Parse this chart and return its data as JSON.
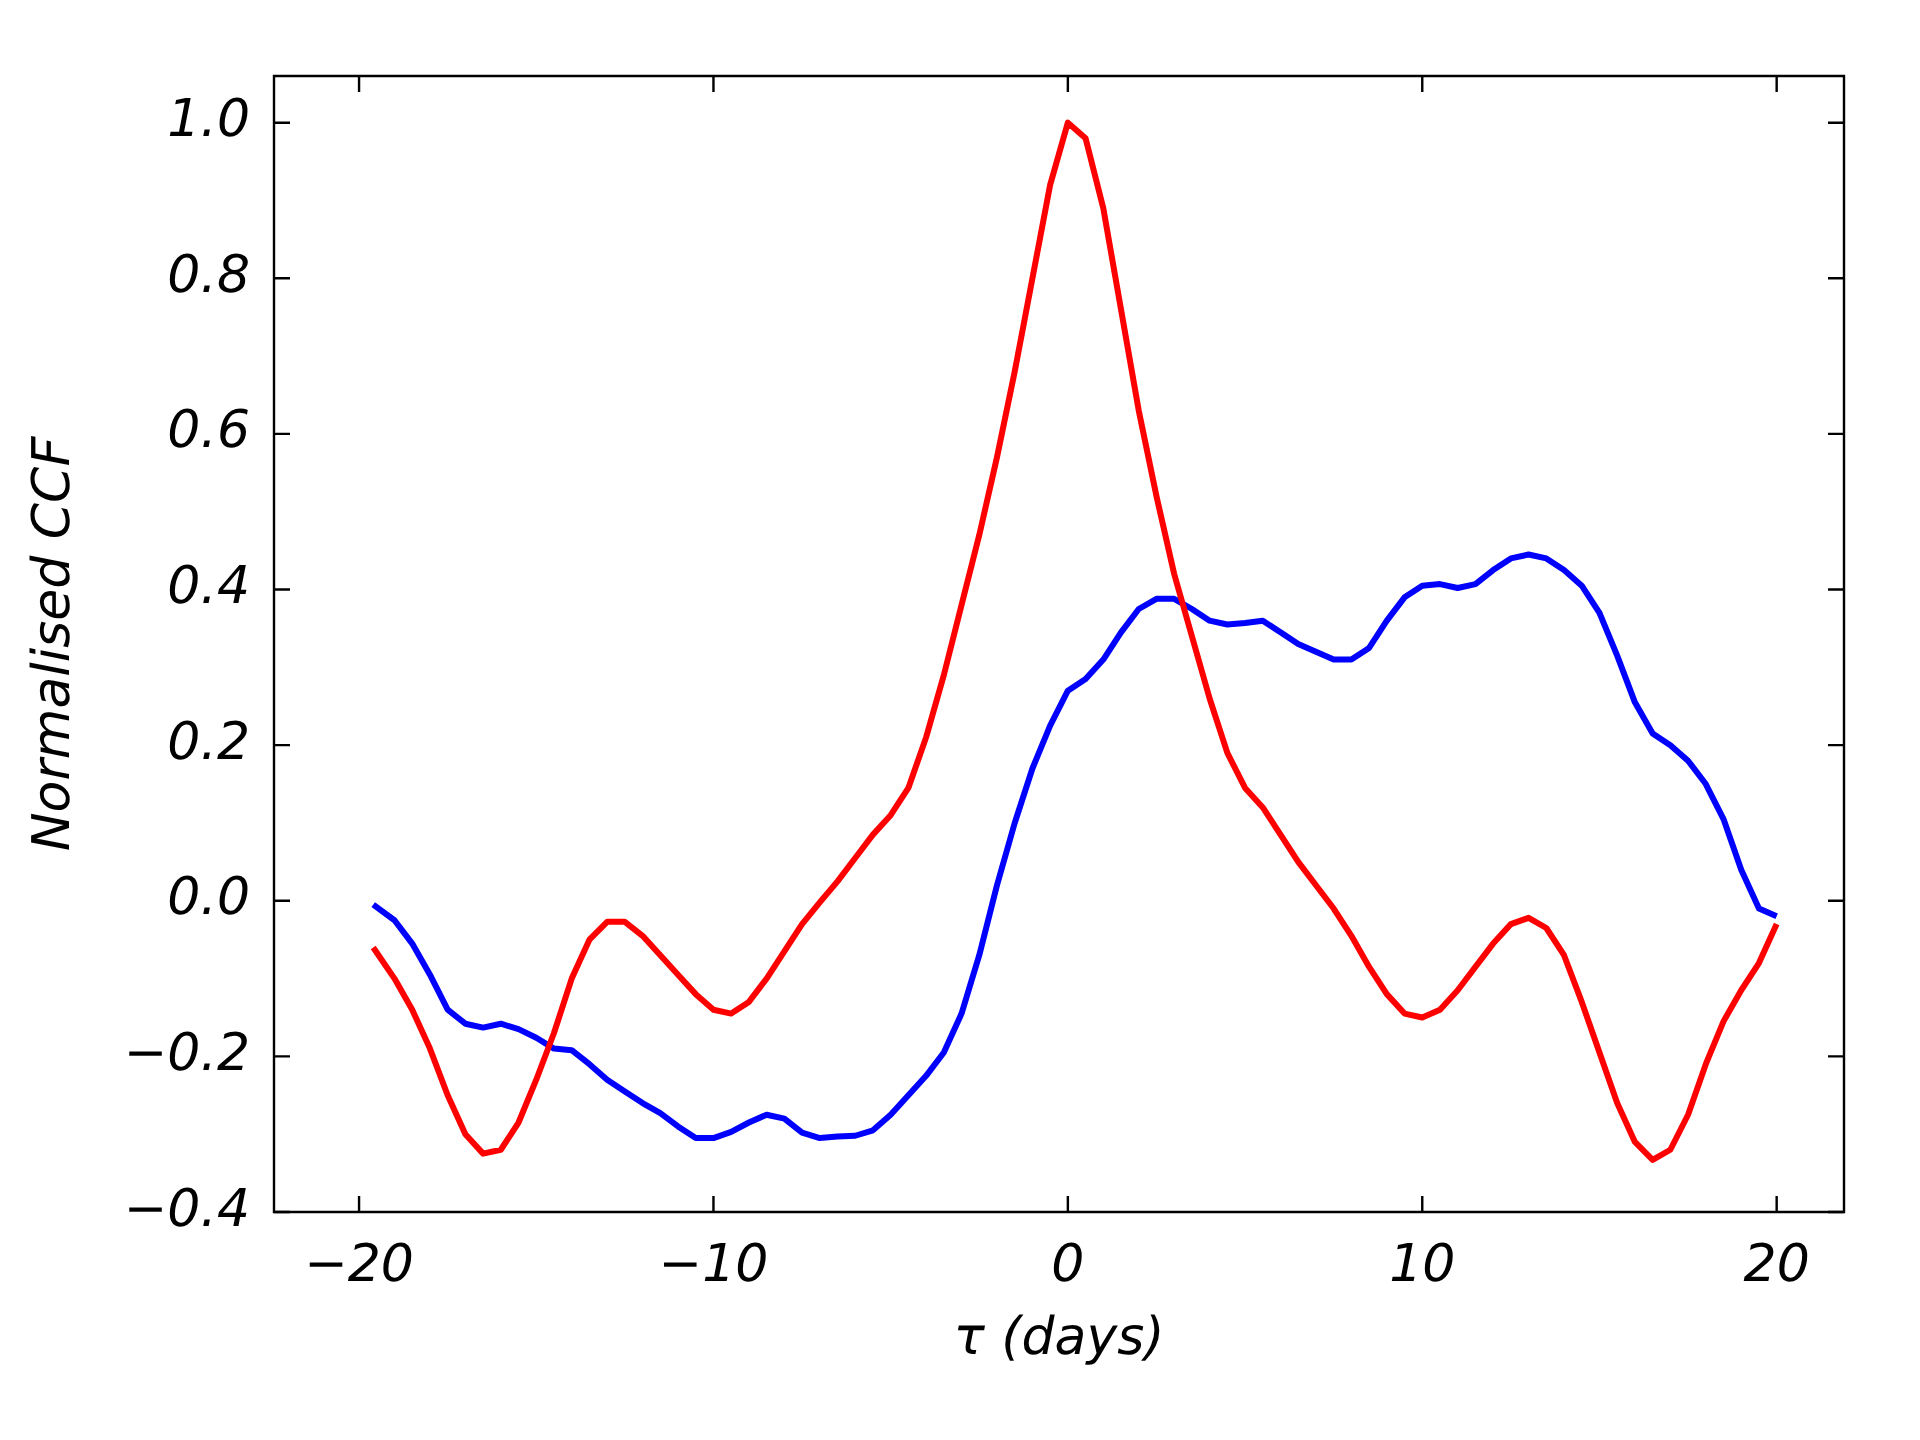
{
  "chart_data": {
    "type": "line",
    "xlabel": "τ (days)",
    "ylabel": "Normalised CCF",
    "grid": false,
    "legend": false,
    "marker": "none",
    "line_style": "solid",
    "xlim": [
      -22.4,
      21.9
    ],
    "ylim": [
      -0.4,
      1.06
    ],
    "xticks": [
      {
        "value": -20,
        "label": "−20"
      },
      {
        "value": -10,
        "label": "−10"
      },
      0,
      10,
      20
    ],
    "yticks": [
      {
        "value": -0.4,
        "label": "−0.4"
      },
      {
        "value": -0.2,
        "label": "−0.2"
      },
      {
        "value": 0,
        "label": "0.0"
      },
      {
        "value": 0.2,
        "label": "0.2"
      },
      {
        "value": 0.4,
        "label": "0.4"
      },
      {
        "value": 0.6,
        "label": "0.6"
      },
      {
        "value": 0.8,
        "label": "0.8"
      },
      {
        "value": 1.0,
        "label": "1.0"
      }
    ],
    "x": [
      -19.6,
      -19,
      -18.5,
      -18,
      -17.5,
      -17,
      -16.5,
      -16,
      -15.5,
      -15,
      -14.5,
      -14,
      -13.5,
      -13,
      -12.5,
      -12,
      -11.5,
      -11,
      -10.5,
      -10,
      -9.5,
      -9,
      -8.5,
      -8,
      -7.5,
      -7,
      -6.5,
      -6,
      -5.5,
      -5,
      -4.5,
      -4,
      -3.5,
      -3,
      -2.5,
      -2,
      -1.5,
      -1,
      -0.5,
      0,
      0.5,
      1,
      1.5,
      2,
      2.5,
      3,
      3.5,
      4,
      4.5,
      5,
      5.5,
      6,
      6.5,
      7,
      7.5,
      8,
      8.5,
      9,
      9.5,
      10,
      10.5,
      11,
      11.5,
      12,
      12.5,
      13,
      13.5,
      14,
      14.5,
      15,
      15.5,
      16,
      16.5,
      17,
      17.5,
      18,
      18.5,
      19,
      19.5,
      20
    ],
    "series": [
      {
        "color": "#ff0000",
        "values": [
          -0.06,
          -0.1,
          -0.14,
          -0.19,
          -0.25,
          -0.3,
          -0.325,
          -0.32,
          -0.285,
          -0.23,
          -0.17,
          -0.1,
          -0.05,
          -0.027,
          -0.027,
          -0.045,
          -0.07,
          -0.095,
          -0.12,
          -0.14,
          -0.145,
          -0.13,
          -0.1,
          -0.065,
          -0.03,
          -0.002,
          0.025,
          0.055,
          0.085,
          0.11,
          0.145,
          0.21,
          0.29,
          0.38,
          0.47,
          0.57,
          0.68,
          0.8,
          0.92,
          1.0,
          0.98,
          0.89,
          0.76,
          0.63,
          0.52,
          0.42,
          0.34,
          0.26,
          0.19,
          0.145,
          0.12,
          0.085,
          0.05,
          0.02,
          -0.01,
          -0.045,
          -0.085,
          -0.12,
          -0.145,
          -0.15,
          -0.14,
          -0.115,
          -0.085,
          -0.055,
          -0.03,
          -0.022,
          -0.035,
          -0.07,
          -0.13,
          -0.195,
          -0.26,
          -0.31,
          -0.333,
          -0.32,
          -0.275,
          -0.21,
          -0.155,
          -0.115,
          -0.08,
          -0.03
        ]
      },
      {
        "color": "#0000ff",
        "values": [
          -0.005,
          -0.025,
          -0.055,
          -0.095,
          -0.14,
          -0.158,
          -0.163,
          -0.158,
          -0.165,
          -0.176,
          -0.19,
          -0.192,
          -0.21,
          -0.23,
          -0.245,
          -0.26,
          -0.273,
          -0.29,
          -0.305,
          -0.305,
          -0.297,
          -0.285,
          -0.275,
          -0.28,
          -0.298,
          -0.305,
          -0.303,
          -0.302,
          -0.295,
          -0.275,
          -0.25,
          -0.225,
          -0.195,
          -0.145,
          -0.07,
          0.02,
          0.1,
          0.17,
          0.225,
          0.27,
          0.285,
          0.31,
          0.345,
          0.375,
          0.388,
          0.388,
          0.375,
          0.36,
          0.355,
          0.357,
          0.36,
          0.345,
          0.33,
          0.32,
          0.31,
          0.31,
          0.325,
          0.36,
          0.39,
          0.405,
          0.407,
          0.402,
          0.407,
          0.425,
          0.44,
          0.445,
          0.44,
          0.425,
          0.405,
          0.37,
          0.315,
          0.255,
          0.215,
          0.2,
          0.18,
          0.15,
          0.105,
          0.04,
          -0.01,
          -0.02
        ]
      }
    ]
  }
}
